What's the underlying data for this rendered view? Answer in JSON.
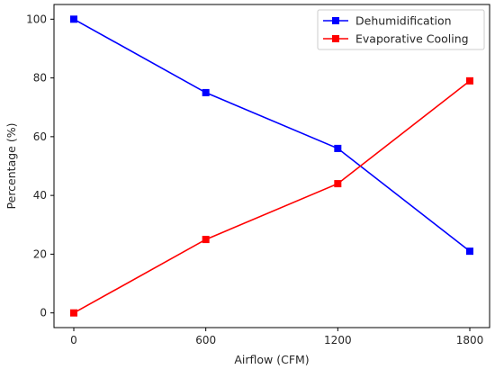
{
  "chart_data": {
    "type": "line",
    "title": "",
    "xlabel": "Airflow (CFM)",
    "ylabel": "Percentage (%)",
    "x": [
      0,
      600,
      1200,
      1800
    ],
    "xticks": [
      0,
      600,
      1200,
      1800
    ],
    "yticks": [
      0,
      20,
      40,
      60,
      80,
      100
    ],
    "xlim": [
      -90,
      1890
    ],
    "ylim": [
      -5,
      105
    ],
    "grid": false,
    "legend": "upper right",
    "series": [
      {
        "name": "Dehumidification",
        "values": [
          100,
          75,
          56,
          21
        ],
        "color": "#0000ff",
        "marker": "square"
      },
      {
        "name": "Evaporative Cooling",
        "values": [
          0,
          25,
          44,
          79
        ],
        "color": "#ff0000",
        "marker": "square"
      }
    ]
  }
}
